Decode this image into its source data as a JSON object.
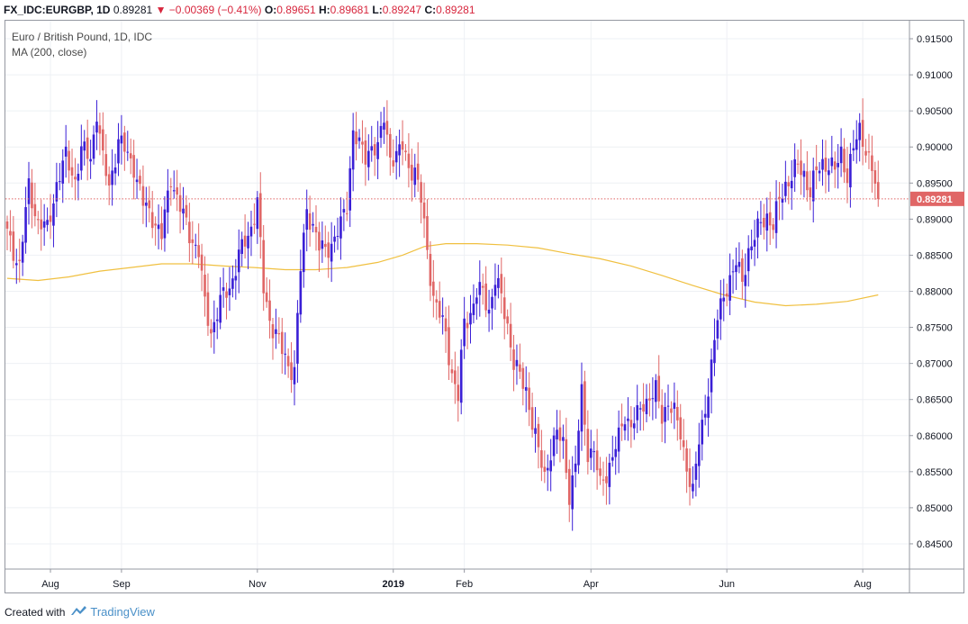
{
  "header": {
    "symbol": "FX_IDC:EURGBP, 1D",
    "last": "0.89281",
    "change": "−0.00369 (−0.41%)",
    "o_label": "O:",
    "o_value": "0.89651",
    "h_label": "H:",
    "h_value": "0.89681",
    "l_label": "L:",
    "l_value": "0.89247",
    "c_label": "C:",
    "c_value": "0.89281",
    "down_arrow_icon": "triangle-down-icon"
  },
  "legend": {
    "series_title": "Euro / British Pound, 1D, IDC",
    "indicator": "MA (200, close)"
  },
  "footer": {
    "created_with": "Created with",
    "brand": "TradingView",
    "logo_icon": "tradingview-cloud-icon"
  },
  "colors": {
    "up": "#3a1fd6",
    "down": "#e06666",
    "ma": "#f0c040",
    "price_line": "#e06666",
    "grid": "#eef0f4",
    "border": "#9598a1"
  },
  "chart_data": {
    "type": "candlestick",
    "ylim": [
      0.8415,
      0.9175
    ],
    "yticks": [
      "0.91500",
      "0.91000",
      "0.90500",
      "0.90000",
      "0.89500",
      "0.89000",
      "0.88500",
      "0.88000",
      "0.87500",
      "0.87000",
      "0.86500",
      "0.86000",
      "0.85500",
      "0.85000",
      "0.84500"
    ],
    "ytick_values": [
      0.915,
      0.91,
      0.905,
      0.9,
      0.895,
      0.89,
      0.885,
      0.88,
      0.875,
      0.87,
      0.865,
      0.86,
      0.855,
      0.85,
      0.845
    ],
    "xticks": [
      {
        "label": "Aug",
        "bold": false,
        "bar": 14
      },
      {
        "label": "Sep",
        "bold": false,
        "bar": 37
      },
      {
        "label": "Nov",
        "bold": false,
        "bar": 81
      },
      {
        "label": "2019",
        "bold": true,
        "bar": 125
      },
      {
        "label": "Feb",
        "bold": false,
        "bar": 148
      },
      {
        "label": "Apr",
        "bold": false,
        "bar": 189
      },
      {
        "label": "Jun",
        "bold": false,
        "bar": 233
      },
      {
        "label": "Aug",
        "bold": false,
        "bar": 277
      }
    ],
    "last_price": 0.89281,
    "last_price_label": "0.89281",
    "anchors": [
      [
        0,
        0.888
      ],
      [
        4,
        0.8835
      ],
      [
        7,
        0.8945
      ],
      [
        10,
        0.8895
      ],
      [
        13,
        0.8885
      ],
      [
        16,
        0.895
      ],
      [
        19,
        0.8985
      ],
      [
        22,
        0.8955
      ],
      [
        24,
        0.8995
      ],
      [
        27,
        0.8985
      ],
      [
        29,
        0.905
      ],
      [
        31,
        0.898
      ],
      [
        33,
        0.8945
      ],
      [
        36,
        0.901
      ],
      [
        38,
        0.8995
      ],
      [
        41,
        0.8975
      ],
      [
        44,
        0.892
      ],
      [
        47,
        0.8905
      ],
      [
        50,
        0.8875
      ],
      [
        53,
        0.896
      ],
      [
        56,
        0.8915
      ],
      [
        59,
        0.888
      ],
      [
        62,
        0.8855
      ],
      [
        64,
        0.878
      ],
      [
        66,
        0.8745
      ],
      [
        69,
        0.8785
      ],
      [
        72,
        0.8805
      ],
      [
        75,
        0.885
      ],
      [
        78,
        0.8875
      ],
      [
        81,
        0.8925
      ],
      [
        83,
        0.88
      ],
      [
        85,
        0.876
      ],
      [
        87,
        0.8745
      ],
      [
        89,
        0.8715
      ],
      [
        91,
        0.8695
      ],
      [
        93,
        0.8695
      ],
      [
        95,
        0.883
      ],
      [
        97,
        0.891
      ],
      [
        99,
        0.8895
      ],
      [
        101,
        0.886
      ],
      [
        103,
        0.8855
      ],
      [
        106,
        0.8875
      ],
      [
        108,
        0.889
      ],
      [
        110,
        0.892
      ],
      [
        112,
        0.9025
      ],
      [
        114,
        0.9
      ],
      [
        116,
        0.8985
      ],
      [
        118,
        0.9005
      ],
      [
        120,
        0.8995
      ],
      [
        122,
        0.904
      ],
      [
        124,
        0.899
      ],
      [
        126,
        0.8985
      ],
      [
        128,
        0.9
      ],
      [
        130,
        0.8975
      ],
      [
        132,
        0.8965
      ],
      [
        134,
        0.8925
      ],
      [
        136,
        0.886
      ],
      [
        138,
        0.879
      ],
      [
        140,
        0.8765
      ],
      [
        142,
        0.8745
      ],
      [
        144,
        0.8685
      ],
      [
        146,
        0.865
      ],
      [
        148,
        0.876
      ],
      [
        150,
        0.877
      ],
      [
        152,
        0.8795
      ],
      [
        154,
        0.88
      ],
      [
        156,
        0.8775
      ],
      [
        158,
        0.8815
      ],
      [
        160,
        0.879
      ],
      [
        162,
        0.8755
      ],
      [
        164,
        0.87
      ],
      [
        166,
        0.868
      ],
      [
        168,
        0.8665
      ],
      [
        170,
        0.862
      ],
      [
        172,
        0.8575
      ],
      [
        174,
        0.8545
      ],
      [
        176,
        0.858
      ],
      [
        178,
        0.86
      ],
      [
        180,
        0.859
      ],
      [
        182,
        0.852
      ],
      [
        184,
        0.8555
      ],
      [
        186,
        0.866
      ],
      [
        188,
        0.858
      ],
      [
        190,
        0.8575
      ],
      [
        192,
        0.853
      ],
      [
        194,
        0.855
      ],
      [
        196,
        0.857
      ],
      [
        198,
        0.8595
      ],
      [
        200,
        0.863
      ],
      [
        202,
        0.8615
      ],
      [
        204,
        0.8625
      ],
      [
        206,
        0.8645
      ],
      [
        208,
        0.8655
      ],
      [
        210,
        0.866
      ],
      [
        212,
        0.8625
      ],
      [
        214,
        0.865
      ],
      [
        216,
        0.863
      ],
      [
        218,
        0.86
      ],
      [
        220,
        0.856
      ],
      [
        222,
        0.852
      ],
      [
        224,
        0.859
      ],
      [
        226,
        0.864
      ],
      [
        228,
        0.8695
      ],
      [
        230,
        0.876
      ],
      [
        232,
        0.88
      ],
      [
        234,
        0.8815
      ],
      [
        236,
        0.8835
      ],
      [
        238,
        0.882
      ],
      [
        240,
        0.8855
      ],
      [
        242,
        0.887
      ],
      [
        244,
        0.89
      ],
      [
        246,
        0.8905
      ],
      [
        248,
        0.8885
      ],
      [
        250,
        0.893
      ],
      [
        252,
        0.895
      ],
      [
        254,
        0.8955
      ],
      [
        256,
        0.8975
      ],
      [
        258,
        0.8965
      ],
      [
        260,
        0.8935
      ],
      [
        262,
        0.8965
      ],
      [
        264,
        0.898
      ],
      [
        266,
        0.8975
      ],
      [
        268,
        0.8965
      ],
      [
        270,
        0.8995
      ],
      [
        272,
        0.896
      ],
      [
        274,
        0.8995
      ],
      [
        276,
        0.9025
      ],
      [
        278,
        0.9
      ],
      [
        280,
        0.8965
      ],
      [
        282,
        0.8928
      ]
    ],
    "ma_points": [
      [
        0,
        0.8818
      ],
      [
        10,
        0.8815
      ],
      [
        20,
        0.882
      ],
      [
        30,
        0.8828
      ],
      [
        40,
        0.8833
      ],
      [
        50,
        0.8838
      ],
      [
        60,
        0.8838
      ],
      [
        70,
        0.8835
      ],
      [
        80,
        0.8833
      ],
      [
        90,
        0.883
      ],
      [
        100,
        0.883
      ],
      [
        110,
        0.8833
      ],
      [
        120,
        0.884
      ],
      [
        128,
        0.885
      ],
      [
        135,
        0.8862
      ],
      [
        142,
        0.8866
      ],
      [
        152,
        0.8866
      ],
      [
        162,
        0.8864
      ],
      [
        172,
        0.886
      ],
      [
        182,
        0.8852
      ],
      [
        192,
        0.8845
      ],
      [
        202,
        0.8835
      ],
      [
        212,
        0.8822
      ],
      [
        222,
        0.8808
      ],
      [
        232,
        0.8795
      ],
      [
        242,
        0.8785
      ],
      [
        252,
        0.878
      ],
      [
        262,
        0.8782
      ],
      [
        272,
        0.8786
      ],
      [
        282,
        0.8795
      ]
    ]
  }
}
